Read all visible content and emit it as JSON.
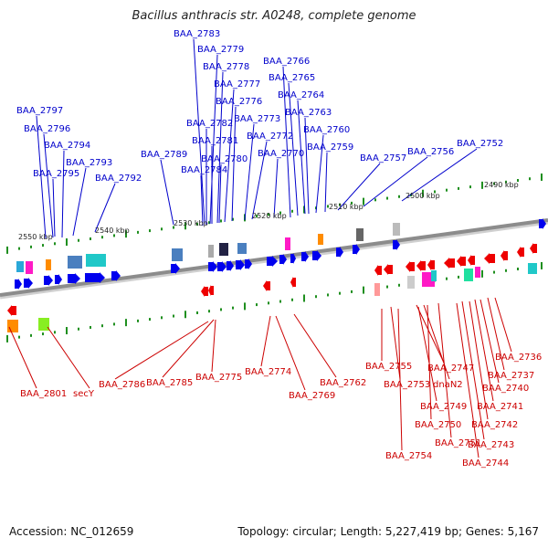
{
  "title": "Bacillus anthracis str. A0248, complete genome",
  "footer": {
    "accession": "Accession: NC_012659",
    "summary": "Topology: circular; Length: 5,227,419 bp; Genes: 5,167"
  },
  "colors": {
    "forward_gene": "#0000ee",
    "reverse_gene": "#ee0000",
    "backbone": "#8c8c8c",
    "tick": "#1f8f1f",
    "forward_label": "#0000cc",
    "reverse_label": "#cc0000"
  },
  "kbp_labels": [
    "2550 kbp",
    "2540 kbp",
    "2530 kbp",
    "2520 kbp",
    "2510 kbp",
    "2500 kbp",
    "2490 kbp"
  ],
  "forward_genes": [
    "BAA_2783",
    "BAA_2779",
    "BAA_2778",
    "BAA_2777",
    "BAA_2776",
    "BAA_2782",
    "BAA_2781",
    "BAA_2780",
    "BAA_2784",
    "BAA_2773",
    "BAA_2772",
    "BAA_2770",
    "BAA_2766",
    "BAA_2765",
    "BAA_2764",
    "BAA_2763",
    "BAA_2760",
    "BAA_2759",
    "BAA_2757",
    "BAA_2756",
    "BAA_2752",
    "BAA_2797",
    "BAA_2796",
    "BAA_2794",
    "BAA_2793",
    "BAA_2795",
    "BAA_2792",
    "BAA_2789"
  ],
  "reverse_genes": [
    "BAA_2801",
    "secY",
    "BAA_2786",
    "BAA_2785",
    "BAA_2775",
    "BAA_2774",
    "BAA_2769",
    "BAA_2762",
    "BAA_2755",
    "BAA_2753",
    "BAA_2747",
    "dnaN2",
    "BAA_2749",
    "BAA_2750",
    "BAA_2751",
    "BAA_2754",
    "BAA_2736",
    "BAA_2737",
    "BAA_2740",
    "BAA_2741",
    "BAA_2742",
    "BAA_2743",
    "BAA_2744"
  ]
}
